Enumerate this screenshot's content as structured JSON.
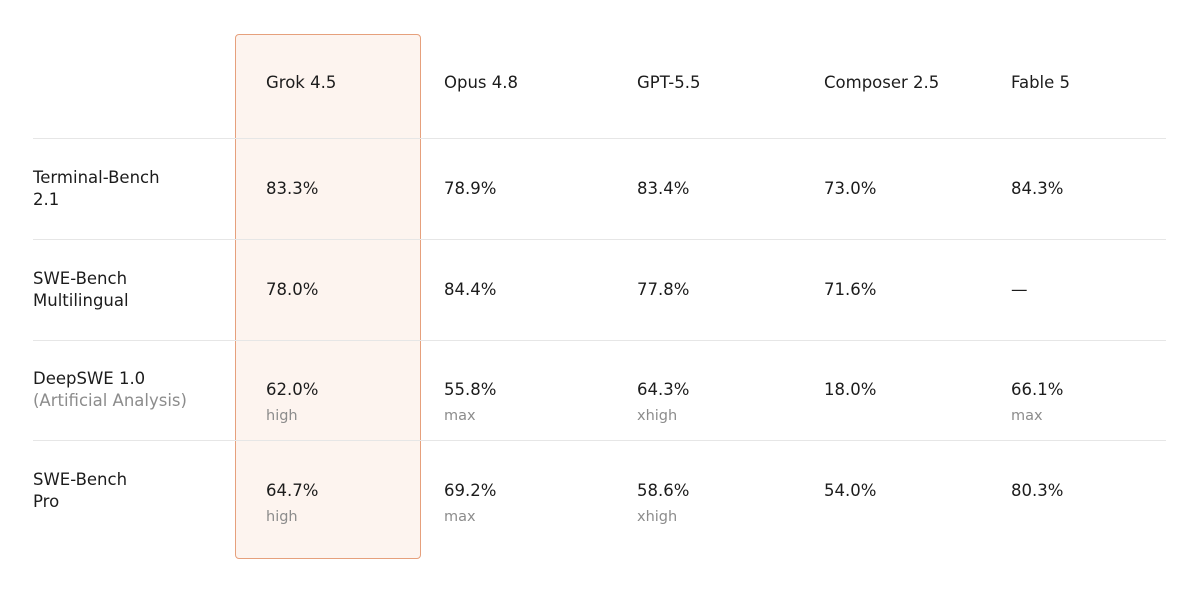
{
  "table": {
    "columns": [
      "Grok 4.5",
      "Opus 4.8",
      "GPT-5.5",
      "Composer 2.5",
      "Fable 5"
    ],
    "rows": [
      {
        "label_lines": [
          "Terminal-Bench",
          "2.1"
        ],
        "cells": [
          {
            "value": "83.3%"
          },
          {
            "value": "78.9%"
          },
          {
            "value": "83.4%"
          },
          {
            "value": "73.0%"
          },
          {
            "value": "84.3%"
          }
        ]
      },
      {
        "label_lines": [
          "SWE-Bench",
          "Multilingual"
        ],
        "cells": [
          {
            "value": "78.0%"
          },
          {
            "value": "84.4%"
          },
          {
            "value": "77.8%"
          },
          {
            "value": "71.6%"
          },
          {
            "value": "—"
          }
        ]
      },
      {
        "label_lines": [
          "DeepSWE 1.0"
        ],
        "sublabel": "(Artificial Analysis)",
        "cells": [
          {
            "value": "62.0%",
            "note": "high"
          },
          {
            "value": "55.8%",
            "note": "max"
          },
          {
            "value": "64.3%",
            "note": "xhigh"
          },
          {
            "value": "18.0%"
          },
          {
            "value": "66.1%",
            "note": "max"
          }
        ]
      },
      {
        "label_lines": [
          "SWE-Bench",
          "Pro"
        ],
        "cells": [
          {
            "value": "64.7%",
            "note": "high"
          },
          {
            "value": "69.2%",
            "note": "max"
          },
          {
            "value": "58.6%",
            "note": "xhigh"
          },
          {
            "value": "54.0%"
          },
          {
            "value": "80.3%"
          }
        ]
      }
    ]
  }
}
